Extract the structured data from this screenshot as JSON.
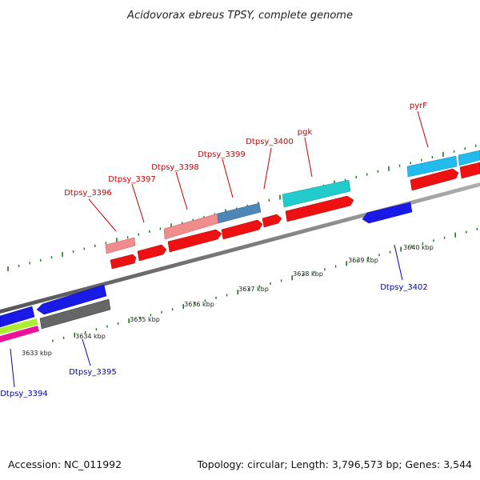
{
  "title": "Acidovorax ebreus TPSY, complete genome",
  "footer": {
    "accession": "Accession: NC_011992",
    "summary": "Topology: circular; Length: 3,796,573 bp; Genes: 3,544"
  },
  "colors": {
    "backbone": "#808080",
    "tick": "#1a7a1a",
    "forward_label": "#cc0000",
    "reverse_label": "#0000bb"
  },
  "kbp_labels": [
    "3633 kbp",
    "3634 kbp",
    "3635 kbp",
    "3636 kbp",
    "3637 kbp",
    "3638 kbp",
    "3639 kbp",
    "3640 kbp"
  ],
  "forward_genes": [
    "Dtpsy_3396",
    "Dtpsy_3397",
    "Dtpsy_3398",
    "Dtpsy_3399",
    "Dtpsy_3400",
    "pgk",
    "pyrF"
  ],
  "reverse_genes": [
    "Dtpsy_3394",
    "Dtpsy_3395",
    "Dtpsy_3402"
  ]
}
